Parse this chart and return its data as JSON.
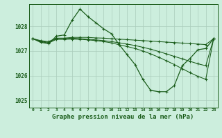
{
  "background_color": "#cceedd",
  "grid_color": "#aaccbb",
  "line_color": "#1a5c1a",
  "marker": "+",
  "title": "Graphe pression niveau de la mer (hPa)",
  "xlim": [
    -0.5,
    23.5
  ],
  "ylim": [
    1024.7,
    1028.9
  ],
  "yticks": [
    1025,
    1026,
    1027,
    1028
  ],
  "xticks": [
    0,
    1,
    2,
    3,
    4,
    5,
    6,
    7,
    8,
    9,
    10,
    11,
    12,
    13,
    14,
    15,
    16,
    17,
    18,
    19,
    20,
    21,
    22,
    23
  ],
  "series": [
    {
      "x": [
        0,
        1,
        2,
        3,
        4,
        5,
        6,
        7,
        8,
        9,
        10,
        11,
        12,
        13,
        14,
        15,
        16,
        17,
        18,
        19,
        20,
        21,
        22,
        23
      ],
      "y": [
        1027.5,
        1027.35,
        1027.3,
        1027.6,
        1027.65,
        1028.25,
        1028.7,
        1028.4,
        1028.15,
        1027.9,
        1027.7,
        1027.25,
        1026.85,
        1026.45,
        1025.85,
        1025.4,
        1025.35,
        1025.35,
        1025.6,
        1026.4,
        1026.7,
        1027.05,
        1027.1,
        1027.5
      ]
    },
    {
      "x": [
        0,
        1,
        2,
        3,
        4,
        5,
        6,
        7,
        8,
        9,
        10,
        11,
        12,
        13,
        14,
        15,
        16,
        17,
        18,
        19,
        20,
        21,
        22,
        23
      ],
      "y": [
        1027.5,
        1027.42,
        1027.38,
        1027.52,
        1027.52,
        1027.55,
        1027.55,
        1027.55,
        1027.53,
        1027.52,
        1027.5,
        1027.48,
        1027.46,
        1027.44,
        1027.42,
        1027.4,
        1027.38,
        1027.36,
        1027.34,
        1027.32,
        1027.3,
        1027.28,
        1027.26,
        1027.5
      ]
    },
    {
      "x": [
        0,
        1,
        2,
        3,
        4,
        5,
        6,
        7,
        8,
        9,
        10,
        11,
        12,
        13,
        14,
        15,
        16,
        17,
        18,
        19,
        20,
        21,
        22,
        23
      ],
      "y": [
        1027.5,
        1027.4,
        1027.35,
        1027.5,
        1027.5,
        1027.52,
        1027.5,
        1027.48,
        1027.45,
        1027.42,
        1027.38,
        1027.33,
        1027.28,
        1027.22,
        1027.15,
        1027.07,
        1026.98,
        1026.88,
        1026.78,
        1026.68,
        1026.58,
        1026.48,
        1026.4,
        1027.5
      ]
    },
    {
      "x": [
        0,
        1,
        2,
        3,
        4,
        5,
        6,
        7,
        8,
        9,
        10,
        11,
        12,
        13,
        14,
        15,
        16,
        17,
        18,
        19,
        20,
        21,
        22,
        23
      ],
      "y": [
        1027.5,
        1027.38,
        1027.32,
        1027.47,
        1027.47,
        1027.48,
        1027.47,
        1027.45,
        1027.42,
        1027.38,
        1027.33,
        1027.25,
        1027.18,
        1027.1,
        1027.0,
        1026.88,
        1026.75,
        1026.6,
        1026.45,
        1026.28,
        1026.12,
        1025.97,
        1025.85,
        1027.5
      ]
    }
  ]
}
